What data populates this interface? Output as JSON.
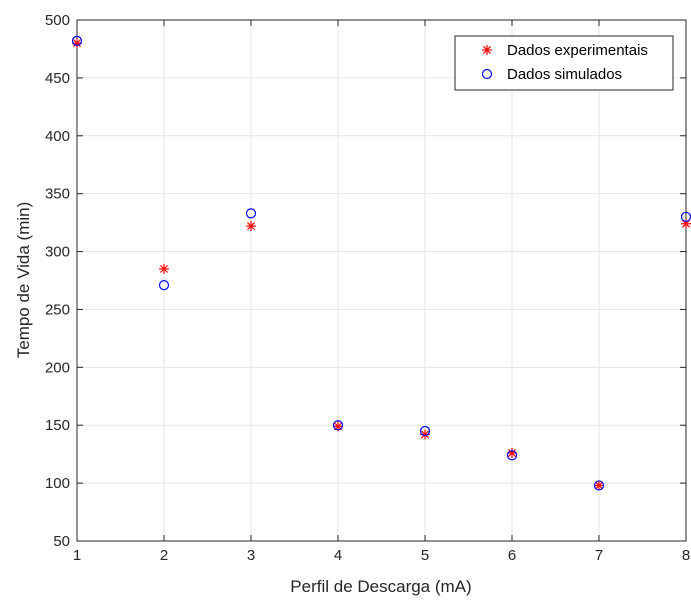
{
  "chart_data": {
    "type": "scatter",
    "title": "",
    "xlabel": "Perfil de Descarga (mA)",
    "ylabel": "Tempo de Vida (min)",
    "xlim": [
      1,
      8
    ],
    "ylim": [
      50,
      500
    ],
    "xticks": [
      1,
      2,
      3,
      4,
      5,
      6,
      7,
      8
    ],
    "yticks": [
      50,
      100,
      150,
      200,
      250,
      300,
      350,
      400,
      450,
      500
    ],
    "grid": true,
    "legend_position": "top-right",
    "series": [
      {
        "name": "Dados experimentais",
        "marker": "asterisk",
        "color": "#ff0000",
        "x": [
          1,
          2,
          3,
          4,
          5,
          6,
          7,
          8
        ],
        "y": [
          480,
          285,
          322,
          149,
          142,
          126,
          98,
          324
        ]
      },
      {
        "name": "Dados simulados",
        "marker": "circle",
        "color": "#0000ff",
        "x": [
          1,
          2,
          3,
          4,
          5,
          6,
          7,
          8
        ],
        "y": [
          482,
          271,
          333,
          150,
          145,
          124,
          98,
          330
        ]
      }
    ]
  }
}
